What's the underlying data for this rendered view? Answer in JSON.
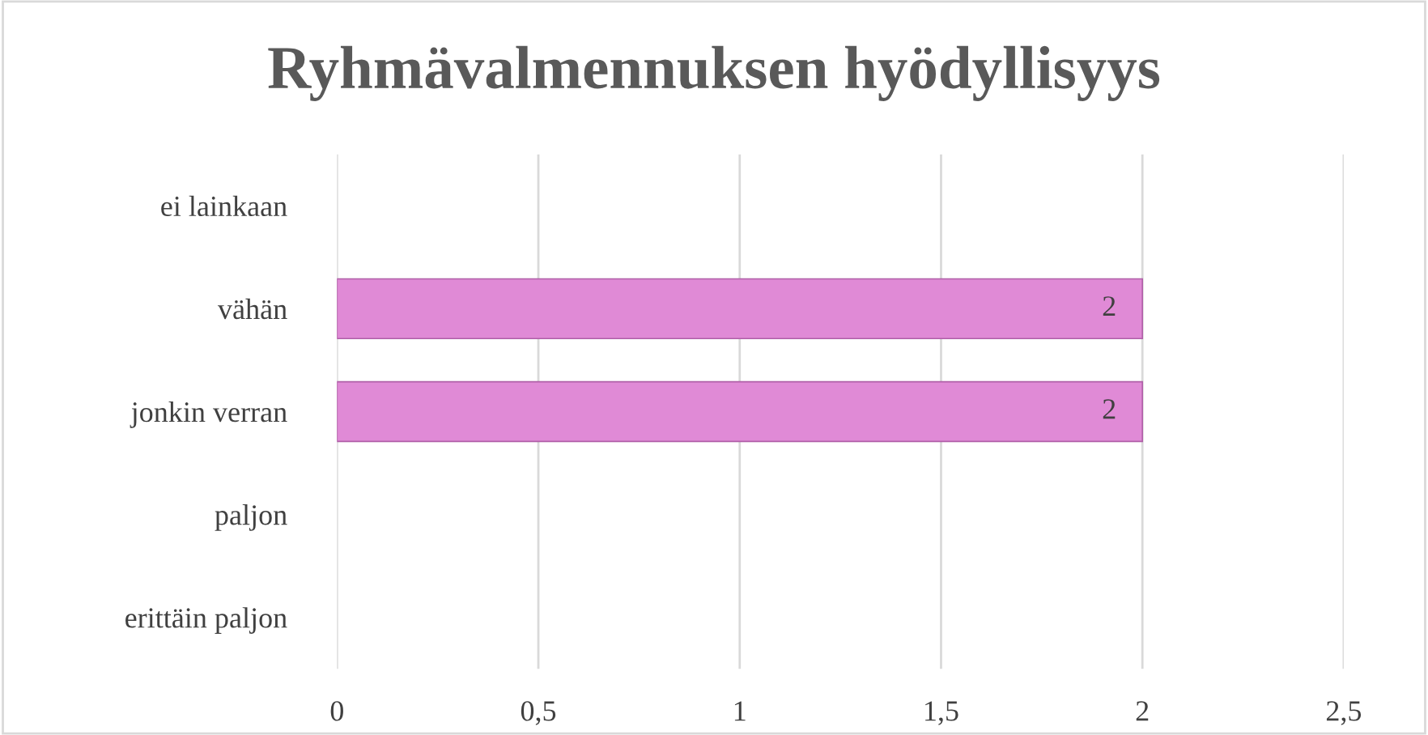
{
  "chart_data": {
    "type": "bar",
    "orientation": "horizontal",
    "title": "Ryhmävalmennuksen hyödyllisyys",
    "categories": [
      "ei lainkaan",
      "vähän",
      "jonkin verran",
      "paljon",
      "erittäin paljon"
    ],
    "values": [
      null,
      2,
      2,
      null,
      null
    ],
    "value_labels": [
      null,
      "2",
      "2",
      null,
      null
    ],
    "color": "#e08ad6",
    "xlim": [
      0,
      2.5
    ],
    "xticks": [
      0,
      {
        "value": 0.5,
        "label": "0,5"
      },
      1,
      {
        "value": 1.5,
        "label": "1,5"
      },
      2,
      {
        "value": 2.5,
        "label": "2,5"
      }
    ],
    "grid": "x"
  }
}
